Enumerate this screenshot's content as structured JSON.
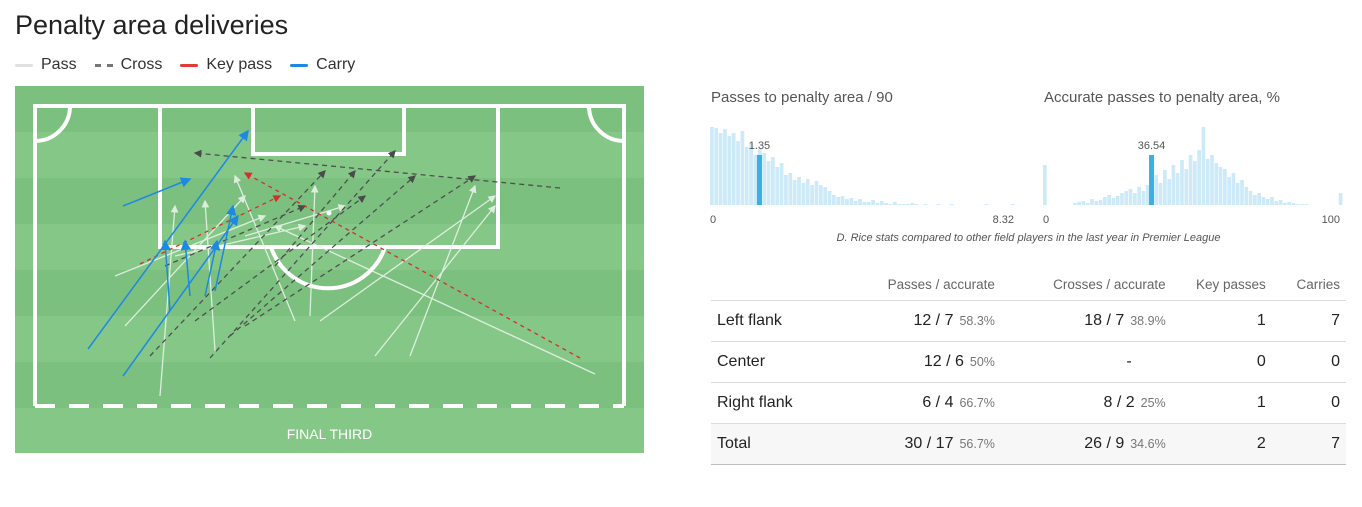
{
  "title": "Penalty area deliveries",
  "legend": [
    {
      "label": "Pass",
      "color": "#e0e0e0",
      "style": "solid"
    },
    {
      "label": "Cross",
      "color": "#777777",
      "style": "dashed"
    },
    {
      "label": "Key pass",
      "color": "#e53935",
      "style": "solid"
    },
    {
      "label": "Carry",
      "color": "#1e88e5",
      "style": "solid"
    }
  ],
  "pitch": {
    "label": "FINAL THIRD",
    "grass_light": "#87c98a",
    "grass_dark": "#7dc280"
  },
  "hist1": {
    "title": "Passes to penalty area / 90",
    "min_label": "0",
    "max_label": "8.32",
    "marker_label": "1.35",
    "marker_value": 1.35
  },
  "hist2": {
    "title": "Accurate passes to penalty area, %",
    "min_label": "0",
    "max_label": "100",
    "marker_label": "36.54",
    "marker_value": 36.54
  },
  "caption": "D. Rice stats compared to other field players in the last year in Premier League",
  "table": {
    "headers": [
      "",
      "Passes / accurate",
      "Crosses / accurate",
      "Key passes",
      "Carries"
    ],
    "rows": [
      {
        "label": "Left flank",
        "passes": "12 / 7",
        "passes_pct": "58.3%",
        "crosses": "18 / 7",
        "crosses_pct": "38.9%",
        "key": "1",
        "carries": "7"
      },
      {
        "label": "Center",
        "passes": "12 / 6",
        "passes_pct": "50%",
        "crosses": "-",
        "crosses_pct": "",
        "key": "0",
        "carries": "0"
      },
      {
        "label": "Right flank",
        "passes": "6 / 4",
        "passes_pct": "66.7%",
        "crosses": "8 / 2",
        "crosses_pct": "25%",
        "key": "1",
        "carries": "0"
      }
    ],
    "total": {
      "label": "Total",
      "passes": "30 / 17",
      "passes_pct": "56.7%",
      "crosses": "26 / 9",
      "crosses_pct": "34.6%",
      "key": "2",
      "carries": "7"
    }
  },
  "colors": {
    "accent": "#29b6f6",
    "hist_bar": "#cdeaf8",
    "marker": "#3bb0e6"
  }
}
